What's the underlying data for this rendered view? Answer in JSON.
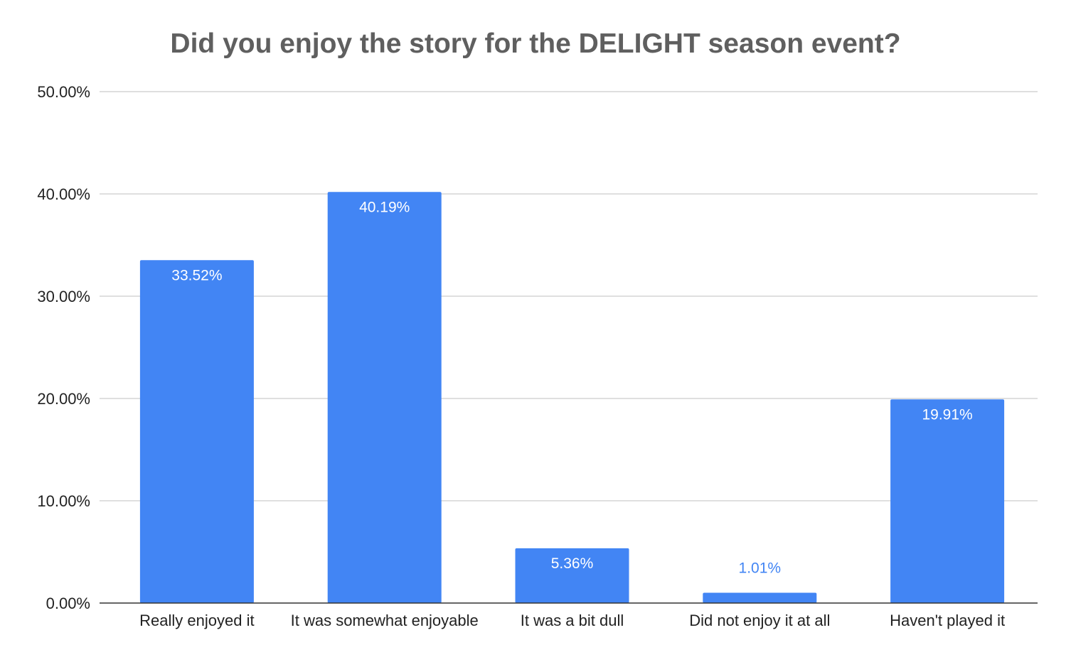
{
  "colors": {
    "bar": "#4285f4",
    "grid": "#cccccc",
    "axis": "#333333",
    "label_inside": "#ffffff",
    "label_outside": "#4285f4",
    "title": "#5f5f5f"
  },
  "chart_data": {
    "type": "bar",
    "title": "Did you enjoy the story for the DELIGHT season event?",
    "xlabel": "",
    "ylabel": "",
    "categories": [
      "Really enjoyed it",
      "It was somewhat enjoyable",
      "It was a bit dull",
      "Did not enjoy it at all",
      "Haven't played it"
    ],
    "values": [
      33.52,
      40.19,
      5.36,
      1.01,
      19.91
    ],
    "data_labels": [
      "33.52%",
      "40.19%",
      "5.36%",
      "1.01%",
      "19.91%"
    ],
    "ylim": [
      0,
      50
    ],
    "yticks": [
      0,
      10,
      20,
      30,
      40,
      50
    ],
    "ytick_labels": [
      "0.00%",
      "10.00%",
      "20.00%",
      "30.00%",
      "40.00%",
      "50.00%"
    ],
    "grid": true,
    "legend": "none"
  }
}
